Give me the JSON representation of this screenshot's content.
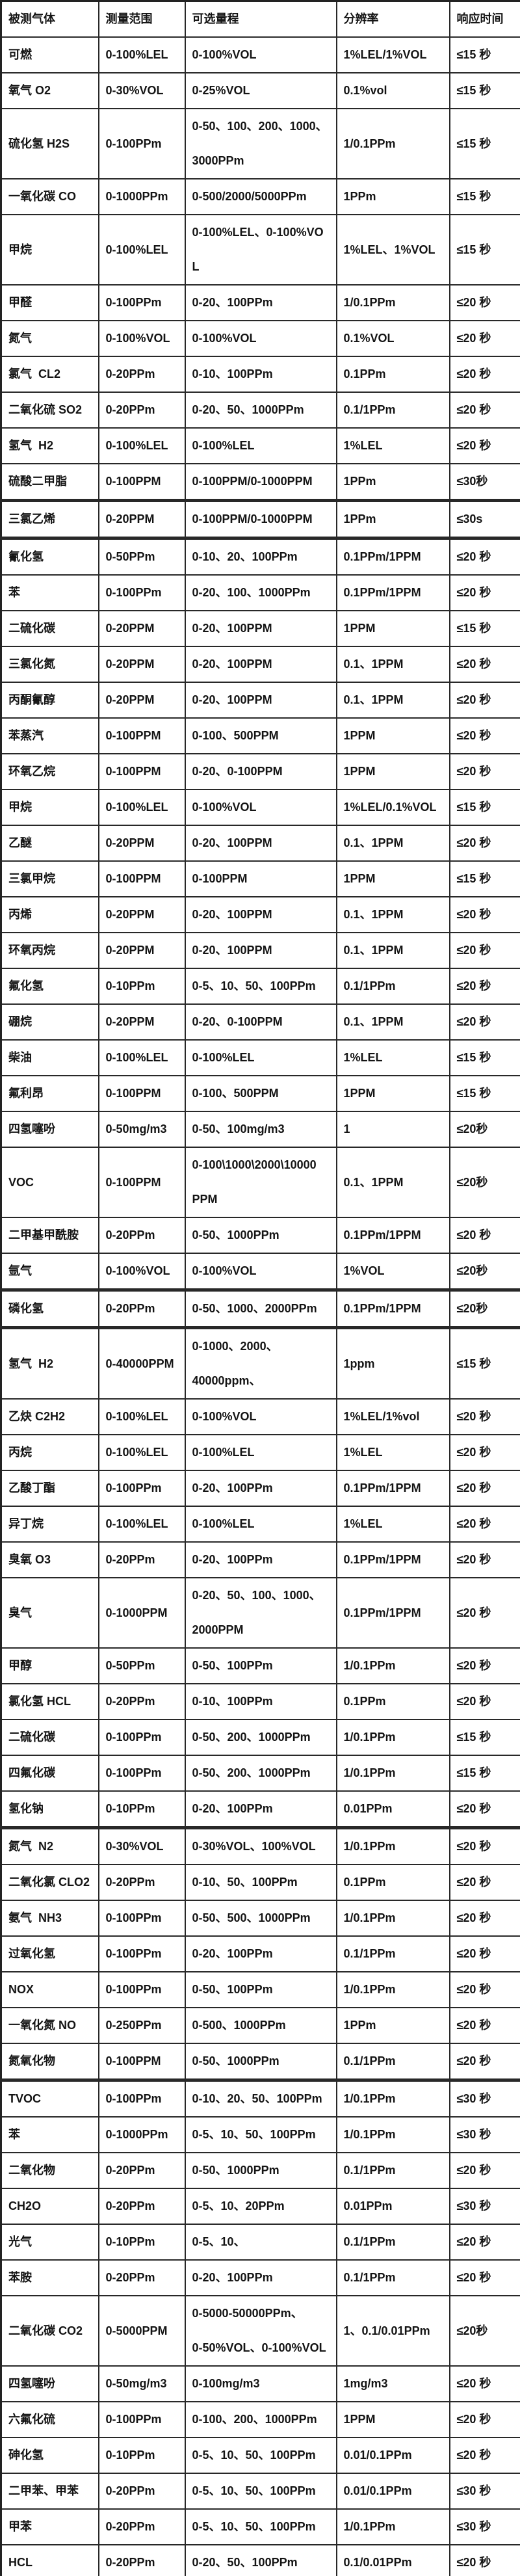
{
  "table": {
    "headers": [
      "被测气体",
      "测量范围",
      "可选量程",
      "分辨率",
      "响应时间"
    ],
    "rows": [
      {
        "gas": "可燃",
        "range": "0-100%LEL",
        "options": "0-100%VOL",
        "resolution": "1%LEL/1%VOL",
        "response": "≤15 秒"
      },
      {
        "gas": "氧气 O2",
        "range": "0-30%VOL",
        "options": "0-25%VOL",
        "resolution": "0.1%vol",
        "response": "≤15 秒"
      },
      {
        "gas": "硫化氢 H2S",
        "range": "0-100PPm",
        "options": "0-50、100、200、1000、\n3000PPm",
        "resolution": "1/0.1PPm",
        "response": "≤15 秒"
      },
      {
        "gas": "一氧化碳 CO",
        "range": "0-1000PPm",
        "options": "0-500/2000/5000PPm",
        "resolution": "1PPm",
        "response": "≤15 秒"
      },
      {
        "gas": "甲烷",
        "range": "0-100%LEL",
        "options": "0-100%LEL、0-100%VOL",
        "resolution": "1%LEL、1%VOL",
        "response": "≤15 秒"
      },
      {
        "gas": "甲醛",
        "range": "0-100PPm",
        "options": "0-20、100PPm",
        "resolution": "1/0.1PPm",
        "response": "≤20 秒"
      },
      {
        "gas": "氮气",
        "range": "0-100%VOL",
        "options": "0-100%VOL",
        "resolution": "0.1%VOL",
        "response": "≤20 秒"
      },
      {
        "gas": "氯气  CL2",
        "range": "0-20PPm",
        "options": "0-10、100PPm",
        "resolution": "0.1PPm",
        "response": "≤20 秒"
      },
      {
        "gas": "二氧化硫 SO2",
        "range": "0-20PPm",
        "options": "0-20、50、1000PPm",
        "resolution": "0.1/1PPm",
        "response": "≤20 秒"
      },
      {
        "gas": "氢气  H2",
        "range": "0-100%LEL",
        "options": "0-100%LEL",
        "resolution": "1%LEL",
        "response": "≤20 秒"
      },
      {
        "gas": "硫酸二甲脂",
        "range": "0-100PPM",
        "options": "0-100PPM/0-1000PPM",
        "resolution": "1PPm",
        "response": "≤30秒",
        "thick": true
      },
      {
        "gas": "三氯乙烯",
        "range": "0-20PPM",
        "options": "0-100PPM/0-1000PPM",
        "resolution": "1PPm",
        "response": "≤30s",
        "thick": true
      },
      {
        "gas": "氰化氢",
        "range": "0-50PPm",
        "options": "0-10、20、100PPm",
        "resolution": "0.1PPm/1PPM",
        "response": "≤20 秒"
      },
      {
        "gas": "苯",
        "range": "0-100PPm",
        "options": "0-20、100、1000PPm",
        "resolution": "0.1PPm/1PPM",
        "response": "≤20 秒"
      },
      {
        "gas": "二硫化碳",
        "range": "0-20PPM",
        "options": "0-20、100PPM",
        "resolution": "1PPM",
        "response": "≤15 秒"
      },
      {
        "gas": "三氯化氮",
        "range": "0-20PPM",
        "options": "0-20、100PPM",
        "resolution": "0.1、1PPM",
        "response": "≤20 秒"
      },
      {
        "gas": "丙酮氰醇",
        "range": "0-20PPM",
        "options": "0-20、100PPM",
        "resolution": "0.1、1PPM",
        "response": "≤20 秒"
      },
      {
        "gas": "苯蒸汽",
        "range": "0-100PPM",
        "options": "0-100、500PPM",
        "resolution": "1PPM",
        "response": "≤20 秒"
      },
      {
        "gas": "环氧乙烷",
        "range": "0-100PPM",
        "options": "0-20、0-100PPM",
        "resolution": "1PPM",
        "response": "≤20 秒"
      },
      {
        "gas": "甲烷",
        "range": "0-100%LEL",
        "options": "0-100%VOL",
        "resolution": "1%LEL/0.1%VOL",
        "response": "≤15 秒"
      },
      {
        "gas": "乙醚",
        "range": "0-20PPM",
        "options": "0-20、100PPM",
        "resolution": "0.1、1PPM",
        "response": "≤20 秒"
      },
      {
        "gas": "三氯甲烷",
        "range": "0-100PPM",
        "options": "0-100PPM",
        "resolution": "1PPM",
        "response": "≤15 秒"
      },
      {
        "gas": "丙烯",
        "range": "0-20PPM",
        "options": "0-20、100PPM",
        "resolution": "0.1、1PPM",
        "response": "≤20 秒"
      },
      {
        "gas": "环氧丙烷",
        "range": "0-20PPM",
        "options": "0-20、100PPM",
        "resolution": "0.1、1PPM",
        "response": "≤20 秒"
      },
      {
        "gas": "氟化氢",
        "range": "0-10PPm",
        "options": "0-5、10、50、100PPm",
        "resolution": "0.1/1PPm",
        "response": "≤20 秒"
      },
      {
        "gas": "硼烷",
        "range": "0-20PPM",
        "options": "0-20、0-100PPM",
        "resolution": "0.1、1PPM",
        "response": "≤20 秒"
      },
      {
        "gas": "柴油",
        "range": "0-100%LEL",
        "options": "0-100%LEL",
        "resolution": "1%LEL",
        "response": "≤15 秒"
      },
      {
        "gas": "氟利昂",
        "range": "0-100PPM",
        "options": "0-100、500PPM",
        "resolution": "1PPM",
        "response": "≤15 秒"
      },
      {
        "gas": "四氢噻吩",
        "range": "0-50mg/m3",
        "options": "0-50、100mg/m3",
        "resolution": "1",
        "response": "≤20秒"
      },
      {
        "gas": "VOC",
        "range": "0-100PPM",
        "options": "0-100\\1000\\2000\\10000\nPPM",
        "resolution": "0.1、1PPM",
        "response": "≤20秒"
      },
      {
        "gas": "二甲基甲酰胺",
        "range": "0-20PPm",
        "options": "0-50、1000PPm",
        "resolution": "0.1PPm/1PPM",
        "response": "≤20 秒"
      },
      {
        "gas": "氩气",
        "range": "0-100%VOL",
        "options": "0-100%VOL",
        "resolution": "1%VOL",
        "response": "≤20秒",
        "thick": true
      },
      {
        "gas": "磷化氢",
        "range": "0-20PPm",
        "options": "0-50、1000、2000PPm",
        "resolution": "0.1PPm/1PPM",
        "response": "≤20秒",
        "thick": true
      },
      {
        "gas": "氢气  H2",
        "range": "0-40000PPM",
        "options": "0-1000、2000、\n40000ppm、",
        "resolution": "1ppm",
        "response": "≤15 秒"
      },
      {
        "gas": "乙炔 C2H2",
        "range": "0-100%LEL",
        "options": "0-100%VOL",
        "resolution": "1%LEL/1%vol",
        "response": "≤20 秒"
      },
      {
        "gas": "丙烷",
        "range": "0-100%LEL",
        "options": "0-100%LEL",
        "resolution": "1%LEL",
        "response": "≤20 秒"
      },
      {
        "gas": "乙酸丁酯",
        "range": "0-100PPm",
        "options": "0-20、100PPm",
        "resolution": "0.1PPm/1PPM",
        "response": "≤20 秒"
      },
      {
        "gas": "异丁烷",
        "range": "0-100%LEL",
        "options": "0-100%LEL",
        "resolution": "1%LEL",
        "response": "≤20 秒"
      },
      {
        "gas": "臭氧 O3",
        "range": "0-20PPm",
        "options": "0-20、100PPm",
        "resolution": "0.1PPm/1PPM",
        "response": "≤20 秒"
      },
      {
        "gas": "臭气",
        "range": "0-1000PPM",
        "options": "0-20、50、100、1000、\n2000PPM",
        "resolution": "0.1PPm/1PPM",
        "response": "≤20 秒"
      },
      {
        "gas": "甲醇",
        "range": "0-50PPm",
        "options": "0-50、100PPm",
        "resolution": "1/0.1PPm",
        "response": "≤20 秒"
      },
      {
        "gas": "氯化氢 HCL",
        "range": "0-20PPm",
        "options": "0-10、100PPm",
        "resolution": "0.1PPm",
        "response": "≤20 秒"
      },
      {
        "gas": "二硫化碳",
        "range": "0-100PPm",
        "options": "0-50、200、1000PPm",
        "resolution": "1/0.1PPm",
        "response": "≤15 秒"
      },
      {
        "gas": "四氟化碳",
        "range": "0-100PPm",
        "options": "0-50、200、1000PPm",
        "resolution": "1/0.1PPm",
        "response": "≤15 秒"
      },
      {
        "gas": "氢化钠",
        "range": "0-10PPm",
        "options": "0-20、100PPm",
        "resolution": "0.01PPm",
        "response": "≤20 秒",
        "thick": true
      },
      {
        "gas": "氮气  N2",
        "range": "0-30%VOL",
        "options": "0-30%VOL、100%VOL",
        "resolution": "1/0.1PPm",
        "response": "≤20 秒"
      },
      {
        "gas": "二氧化氯 CLO2",
        "range": "0-20PPm",
        "options": "0-10、50、100PPm",
        "resolution": "0.1PPm",
        "response": "≤20 秒"
      },
      {
        "gas": "氨气  NH3",
        "range": "0-100PPm",
        "options": "0-50、500、1000PPm",
        "resolution": "1/0.1PPm",
        "response": "≤20 秒"
      },
      {
        "gas": "过氧化氢",
        "range": "0-100PPm",
        "options": "0-20、100PPm",
        "resolution": "0.1/1PPm",
        "response": "≤20 秒"
      },
      {
        "gas": "NOX",
        "range": "0-100PPm",
        "options": "0-50、100PPm",
        "resolution": "1/0.1PPm",
        "response": "≤20 秒"
      },
      {
        "gas": "一氧化氮 NO",
        "range": "0-250PPm",
        "options": "0-500、1000PPm",
        "resolution": "1PPm",
        "response": "≤20 秒"
      },
      {
        "gas": "氮氧化物",
        "range": "0-100PPM",
        "options": "0-50、1000PPm",
        "resolution": "0.1/1PPm",
        "response": "≤20 秒",
        "thick": true
      },
      {
        "gas": "TVOC",
        "range": "0-100PPm",
        "options": "0-10、20、50、100PPm",
        "resolution": "1/0.1PPm",
        "response": "≤30 秒"
      },
      {
        "gas": "苯",
        "range": "0-1000PPm",
        "options": "0-5、10、50、100PPm",
        "resolution": "1/0.1PPm",
        "response": "≤30 秒"
      },
      {
        "gas": "二氧化物",
        "range": "0-20PPm",
        "options": "0-50、1000PPm",
        "resolution": "0.1/1PPm",
        "response": "≤20 秒"
      },
      {
        "gas": "CH2O",
        "range": "0-20PPm",
        "options": "0-5、10、20PPm",
        "resolution": "0.01PPm",
        "response": "≤30 秒"
      },
      {
        "gas": "光气",
        "range": "0-10PPm",
        "options": "0-5、10、",
        "resolution": "0.1/1PPm",
        "response": "≤20 秒"
      },
      {
        "gas": "苯胺",
        "range": "0-20PPm",
        "options": "0-20、100PPm",
        "resolution": "0.1/1PPm",
        "response": "≤20 秒"
      },
      {
        "gas": "二氧化碳 CO2",
        "range": "0-5000PPM",
        "options": "0-5000-50000PPm、\n0-50%VOL、0-100%VOL",
        "resolution": "1、0.1/0.01PPm",
        "response": "≤20秒"
      },
      {
        "gas": "四氢噻吩",
        "range": "0-50mg/m3",
        "options": "0-100mg/m3",
        "resolution": "1mg/m3",
        "response": "≤20 秒"
      },
      {
        "gas": "六氟化硫",
        "range": "0-100PPm",
        "options": "0-100、200、1000PPm",
        "resolution": "1PPM",
        "response": "≤20 秒"
      },
      {
        "gas": "砷化氢",
        "range": "0-10PPm",
        "options": "0-5、10、50、100PPm",
        "resolution": "0.01/0.1PPm",
        "response": "≤20 秒"
      },
      {
        "gas": "二甲苯、甲苯",
        "range": "0-20PPm",
        "options": "0-5、10、50、100PPm",
        "resolution": "0.01/0.1PPm",
        "response": "≤30 秒"
      },
      {
        "gas": "甲苯",
        "range": "0-20PPm",
        "options": "0-5、10、50、100PPm",
        "resolution": "1/0.1PPm",
        "response": "≤30 秒"
      },
      {
        "gas": "HCL",
        "range": "0-20PPm",
        "options": "0-20、50、100PPm",
        "resolution": "0.1/0.01PPm",
        "response": "≤20 秒"
      }
    ]
  }
}
